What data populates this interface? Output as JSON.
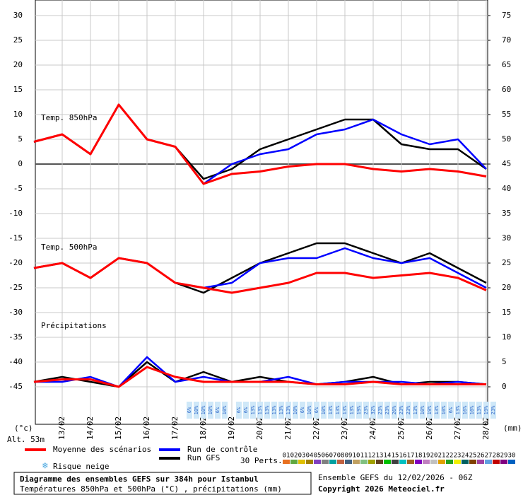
{
  "chart_data": {
    "type": "line",
    "annotations": [
      "Temp. 850hPa",
      "Temp. 500hPa",
      "Précipitations"
    ],
    "y_unit": "(°c)",
    "y2_unit": "(mm)",
    "altitude": "Alt. 53m",
    "categories": [
      null,
      "13/02",
      "14/02",
      "15/02",
      "16/02",
      "17/02",
      "18/02",
      "19/02",
      "20/02",
      "21/02",
      "22/02",
      "23/02",
      "24/02",
      "25/02",
      "26/02",
      "27/02",
      "28/02"
    ],
    "ylim": [
      -45,
      30
    ],
    "yticks": [
      -45,
      -40,
      -35,
      -30,
      -25,
      -20,
      -15,
      -10,
      -5,
      0,
      5,
      10,
      15,
      20,
      25,
      30
    ],
    "y2lim": [
      0,
      75
    ],
    "y2ticks": [
      0,
      5,
      10,
      15,
      20,
      25,
      30,
      35,
      40,
      45,
      50,
      55,
      60,
      65,
      70,
      75
    ],
    "grid": true,
    "series": [
      {
        "color": "#000000",
        "values": [
          4.5,
          6,
          2,
          12,
          5,
          3.5,
          -3,
          -1,
          3,
          5,
          7,
          9,
          9,
          4,
          3,
          3,
          -1
        ]
      },
      {
        "color": "#0000ff",
        "values": [
          4.5,
          6,
          2,
          12,
          5,
          3.5,
          -4,
          0,
          2,
          3,
          6,
          7,
          9,
          6,
          4,
          5,
          -1
        ]
      },
      {
        "color": "#ff0000",
        "values": [
          4.5,
          6,
          2,
          12,
          5,
          3.5,
          -4,
          -2,
          -1.5,
          -0.5,
          0,
          0,
          -1,
          -1.5,
          -1,
          -1.5,
          -2.5
        ]
      },
      {
        "color": "#000000",
        "values": [
          -21,
          -20,
          -23,
          -19,
          -20,
          -24,
          -26,
          -23,
          -20,
          -18,
          -16,
          -16,
          -18,
          -20,
          -18,
          -21,
          -24
        ]
      },
      {
        "color": "#0000ff",
        "values": [
          -21,
          -20,
          -23,
          -19,
          -20,
          -24,
          -25,
          -24,
          -20,
          -19,
          -19,
          -17,
          -19,
          -20,
          -19,
          -22,
          -25
        ]
      },
      {
        "color": "#ff0000",
        "values": [
          -21,
          -20,
          -23,
          -19,
          -20,
          -24,
          -25,
          -26,
          -25,
          -24,
          -22,
          -22,
          -23,
          -22.5,
          -22,
          -23,
          -25.5
        ]
      },
      {
        "color": "#000000",
        "axis": "y2",
        "values": [
          1,
          2,
          1,
          0,
          5,
          1,
          3,
          1,
          2,
          1,
          0.5,
          1,
          2,
          0.5,
          1,
          1,
          0.5
        ]
      },
      {
        "color": "#0000ff",
        "axis": "y2",
        "values": [
          1,
          1,
          2,
          0,
          6,
          1,
          2,
          1,
          1,
          2,
          0.5,
          1,
          1,
          1,
          0.5,
          1,
          0.5
        ]
      },
      {
        "color": "#ff0000",
        "axis": "y2",
        "values": [
          1,
          1.5,
          1.5,
          0,
          4,
          2,
          1,
          1,
          1,
          1,
          0.5,
          0.5,
          1,
          0.5,
          0.5,
          0.5,
          0.5
        ]
      }
    ],
    "legend": [
      {
        "label": "Moyenne des scénarios",
        "color": "#ff0000"
      },
      {
        "label": "Run de contrôle",
        "color": "#0000ff"
      },
      {
        "label": "Run GFS",
        "color": "#000000"
      }
    ],
    "snow_label": "Risque neige",
    "snow_risk": [
      null,
      null,
      null,
      null,
      null,
      null,
      null,
      null,
      null,
      null,
      null,
      null,
      null,
      null,
      null,
      null,
      null,
      null,
      null,
      null,
      null,
      null,
      "6%",
      "10%",
      "10%",
      "10%",
      "6%",
      "10%",
      null,
      "6%",
      "6%",
      "13%",
      "13%",
      "13%",
      "13%",
      "13%",
      "13%",
      "10%",
      "6%",
      "10%",
      "6%",
      "10%",
      "13%",
      "13%",
      "13%",
      "13%",
      "19%",
      "23%",
      "32%",
      "23%",
      "23%",
      "26%",
      "23%",
      "23%",
      "13%",
      "10%",
      "19%",
      "13%",
      "10%",
      "6%",
      "13%",
      "16%",
      "10%",
      "13%",
      "19%",
      "23%"
    ],
    "perts_label": "30 Perts.",
    "perts": [
      {
        "label": "01",
        "color": "#e87020"
      },
      {
        "label": "02",
        "color": "#60a840"
      },
      {
        "label": "03",
        "color": "#e0c000"
      },
      {
        "label": "04",
        "color": "#a08000"
      },
      {
        "label": "05",
        "color": "#8040c0"
      },
      {
        "label": "06",
        "color": "#808080"
      },
      {
        "label": "07",
        "color": "#00a0a0"
      },
      {
        "label": "08",
        "color": "#c06040"
      },
      {
        "label": "09",
        "color": "#406080"
      },
      {
        "label": "10",
        "color": "#c0a060"
      },
      {
        "label": "11",
        "color": "#80c080"
      },
      {
        "label": "12",
        "color": "#a0a000"
      },
      {
        "label": "13",
        "color": "#604020"
      },
      {
        "label": "14",
        "color": "#00c000"
      },
      {
        "label": "15",
        "color": "#404040"
      },
      {
        "label": "16",
        "color": "#00c0c0"
      },
      {
        "label": "17",
        "color": "#a06020"
      },
      {
        "label": "18",
        "color": "#8000c0"
      },
      {
        "label": "19",
        "color": "#c080c0"
      },
      {
        "label": "20",
        "color": "#c0c0c0"
      },
      {
        "label": "21",
        "color": "#e0a000"
      },
      {
        "label": "22",
        "color": "#20a020"
      },
      {
        "label": "23",
        "color": "#f0f000"
      },
      {
        "label": "24",
        "color": "#006060"
      },
      {
        "label": "25",
        "color": "#804000"
      },
      {
        "label": "26",
        "color": "#a040a0"
      },
      {
        "label": "27",
        "color": "#60a0e0"
      },
      {
        "label": "28",
        "color": "#c00000"
      },
      {
        "label": "29",
        "color": "#800080"
      },
      {
        "label": "30",
        "color": "#0060c0"
      }
    ],
    "title": "Diagramme des ensembles GEFS sur 384h pour Istanbul",
    "subtitle": "Températures 850hPa et 500hPa (°C) , précipitations (mm)",
    "run_info": "Ensemble GEFS du 12/02/2026 - 06Z",
    "copyright": "Copyright 2026 Meteociel.fr"
  }
}
